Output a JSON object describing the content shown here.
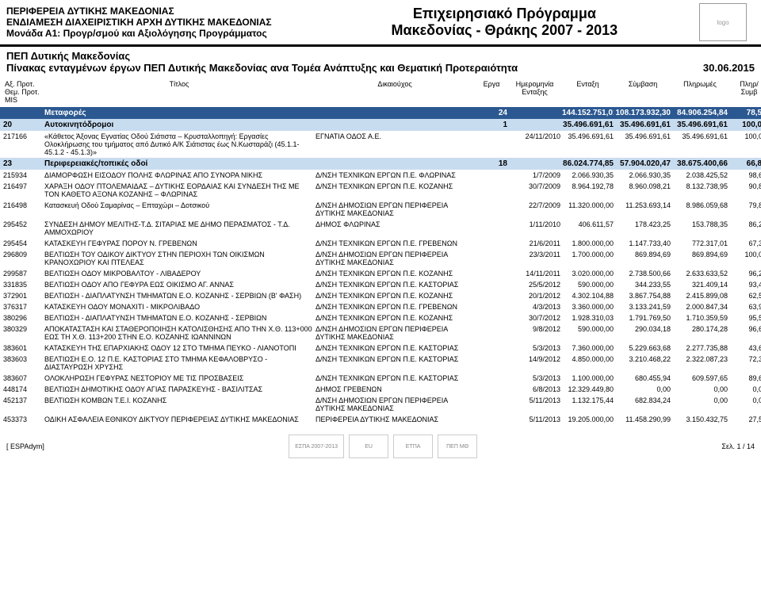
{
  "header": {
    "org_line1": "ΠΕΡΙΦΕΡΕΙΑ ΔΥΤΙΚΗΣ ΜΑΚΕΔΟΝΙΑΣ",
    "org_line2": "ΕΝΔΙΑΜΕΣΗ ΔΙΑΧΕΙΡΙΣΤΙΚΗ ΑΡΧΗ ΔΥΤΙΚΗΣ ΜΑΚΕΔΟΝΙΑΣ",
    "org_line3": "Μονάδα Α1: Προγρ/σμού και Αξιολόγησης Προγράμματος",
    "program_line1": "Επιχειρησιακό Πρόγραμμα",
    "program_line2": "Μακεδονίας - Θράκης 2007 - 2013"
  },
  "subheader": {
    "title1": "ΠΕΠ Δυτικής Μακεδονίας",
    "title2": "Πίνακας ενταγμένων έργων ΠΕΠ Δυτικής Μακεδονίας ανα Τομέα Ανάπτυξης και Θεματική Προτεραιότητα",
    "date": "30.06.2015"
  },
  "columns": {
    "c1": "Αξ. Προτ. Θεμ. Προτ. MIS",
    "c2": "Τίτλος",
    "c3": "Δικαιούχος",
    "c4": "Εργα",
    "c5": "Ημερομηνία Ενταξης",
    "c6": "Ενταξη",
    "c7": "Σύμβαση",
    "c8": "Πληρωμές",
    "c9": "Πληρ/ Συμβ"
  },
  "band1": {
    "label": "Μεταφορές",
    "erga": "24",
    "entaxi": "144.152.751,01",
    "symvasi": "108.173.932,30",
    "pliromes": "84.906.254,84",
    "pct": "78,5%"
  },
  "subband1": {
    "code": "20",
    "label": "Αυτοκινητόδρομοι",
    "erga": "1",
    "entaxi": "35.496.691,61",
    "symvasi": "35.496.691,61",
    "pliromes": "35.496.691,61",
    "pct": "100,0%"
  },
  "row_sub1": {
    "mis": "217166",
    "title": "«Κάθετος Άξονας Εγνατίας Οδού Σιάτιστα – Κρυσταλλοπηγή: Εργασίες Ολοκλήρωσης του τμήματος από Δυτικό Α/Κ Σιάτιστας έως Ν.Κωσταράζι (45.1.1- 45.1.2 - 45.1.3)»",
    "dik": "ΕΓΝΑΤΙΑ ΟΔΟΣ Α.Ε.",
    "date": "24/11/2010",
    "entaxi": "35.496.691,61",
    "symvasi": "35.496.691,61",
    "pliromes": "35.496.691,61",
    "pct": "100,0%"
  },
  "subband2": {
    "code": "23",
    "label": "Περιφερειακές/τοπικές οδοί",
    "erga": "18",
    "entaxi": "86.024.774,85",
    "symvasi": "57.904.020,47",
    "pliromes": "38.675.400,66",
    "pct": "66,8%"
  },
  "rows": [
    {
      "mis": "215934",
      "title": "ΔΙΑΜΟΡΦΩΣΗ ΕΙΣΟΔΟΥ ΠΟΛΗΣ ΦΛΩΡΙΝΑΣ ΑΠΟ ΣΥΝΟΡΑ ΝΙΚΗΣ",
      "dik": "Δ/ΝΣΗ ΤΕΧΝΙΚΩΝ ΕΡΓΩΝ Π.Ε. ΦΛΩΡΙΝΑΣ",
      "date": "1/7/2009",
      "entaxi": "2.066.930,35",
      "symvasi": "2.066.930,35",
      "pliromes": "2.038.425,52",
      "pct": "98,6%"
    },
    {
      "mis": "216497",
      "title": "ΧΑΡΑΞΗ ΟΔΟΥ ΠΤΟΛΕΜΑΙΔΑΣ – ΔΥΤΙΚΗΣ ΕΟΡΔΑΙΑΣ ΚΑΙ ΣΥΝΔΕΣΗ ΤΗΣ ΜΕ ΤΟΝ ΚΑΘΕΤΟ ΑΞΟΝΑ ΚΟΖΑΝΗΣ – ΦΛΩΡΙΝΑΣ",
      "dik": "Δ/ΝΣΗ ΤΕΧΝΙΚΩΝ ΕΡΓΩΝ Π.Ε. ΚΟΖΑΝΗΣ",
      "date": "30/7/2009",
      "entaxi": "8.964.192,78",
      "symvasi": "8.960.098,21",
      "pliromes": "8.132.738,95",
      "pct": "90,8%"
    },
    {
      "mis": "216498",
      "title": "Κατασκευή Οδού Σαμαρίνας – Επταχώρι – Δοτσικού",
      "dik": "Δ/ΝΣΗ ΔΗΜΟΣΙΩΝ ΕΡΓΩΝ ΠΕΡΙΦΕΡΕΙΑ ΔΥΤΙΚΗΣ ΜΑΚΕΔΟΝΙΑΣ",
      "date": "22/7/2009",
      "entaxi": "11.320.000,00",
      "symvasi": "11.253.693,14",
      "pliromes": "8.986.059,68",
      "pct": "79,8%"
    },
    {
      "mis": "295452",
      "title": "ΣΥΝΔΕΣΗ ΔΗΜΟΥ ΜΕΛΙΤΗΣ-Τ.Δ. ΣΙΤΑΡΙΑΣ ΜΕ ΔΗΜΟ ΠΕΡΑΣΜΑΤΟΣ - Τ.Δ. ΑΜΜΟΧΩΡΙΟΥ",
      "dik": "ΔΗΜΟΣ ΦΛΩΡΙΝΑΣ",
      "date": "1/11/2010",
      "entaxi": "406.611,57",
      "symvasi": "178.423,25",
      "pliromes": "153.788,35",
      "pct": "86,2%"
    },
    {
      "mis": "295454",
      "title": "ΚΑΤΑΣΚΕΥΗ ΓΕΦΥΡΑΣ ΠΟΡΟΥ Ν. ΓΡΕΒΕΝΩΝ",
      "dik": "Δ/ΝΣΗ ΤΕΧΝΙΚΩΝ ΕΡΓΩΝ Π.Ε. ΓΡΕΒΕΝΩΝ",
      "date": "21/6/2011",
      "entaxi": "1.800.000,00",
      "symvasi": "1.147.733,40",
      "pliromes": "772.317,01",
      "pct": "67,3%"
    },
    {
      "mis": "296809",
      "title": "ΒΕΛΤΙΩΣΗ ΤΟΥ ΟΔΙΚΟΥ ΔΙΚΤΥΟΥ ΣΤΗΝ ΠΕΡΙΟΧΗ ΤΩΝ ΟΙΚΙΣΜΩΝ ΚΡΑΝΟΧΩΡΙΟΥ ΚΑΙ ΠΤΕΛΕΑΣ",
      "dik": "Δ/ΝΣΗ ΔΗΜΟΣΙΩΝ ΕΡΓΩΝ ΠΕΡΙΦΕΡΕΙΑ ΔΥΤΙΚΗΣ ΜΑΚΕΔΟΝΙΑΣ",
      "date": "23/3/2011",
      "entaxi": "1.700.000,00",
      "symvasi": "869.894,69",
      "pliromes": "869.894,69",
      "pct": "100,0%"
    },
    {
      "mis": "299587",
      "title": "ΒΕΛΤΙΩΣΗ ΟΔΟΥ ΜΙΚΡΟΒΑΛΤΟΥ - ΛΙΒΑΔΕΡΟΥ",
      "dik": "Δ/ΝΣΗ ΤΕΧΝΙΚΩΝ ΕΡΓΩΝ Π.Ε. ΚΟΖΑΝΗΣ",
      "date": "14/11/2011",
      "entaxi": "3.020.000,00",
      "symvasi": "2.738.500,66",
      "pliromes": "2.633.633,52",
      "pct": "96,2%"
    },
    {
      "mis": "331835",
      "title": "ΒΕΛΤΙΩΣΗ ΟΔΟΥ ΑΠΟ ΓΕΦΥΡΑ ΕΩΣ ΟΙΚΙΣΜΟ ΑΓ. ΑΝΝΑΣ",
      "dik": "Δ/ΝΣΗ ΤΕΧΝΙΚΩΝ ΕΡΓΩΝ Π.Ε. ΚΑΣΤΟΡΙΑΣ",
      "date": "25/5/2012",
      "entaxi": "590.000,00",
      "symvasi": "344.233,55",
      "pliromes": "321.409,14",
      "pct": "93,4%"
    },
    {
      "mis": "372901",
      "title": "ΒΕΛΤΙΩΣΗ - ΔΙΑΠΛΑΤΥΝΣΗ ΤΜΗΜΑΤΩΝ Ε.Ο. ΚΟΖΑΝΗΣ - ΣΕΡΒΙΩΝ (Β' ΦΑΣΗ)",
      "dik": "Δ/ΝΣΗ ΤΕΧΝΙΚΩΝ ΕΡΓΩΝ Π.Ε. ΚΟΖΑΝΗΣ",
      "date": "20/1/2012",
      "entaxi": "4.302.104,88",
      "symvasi": "3.867.754,88",
      "pliromes": "2.415.899,08",
      "pct": "62,5%"
    },
    {
      "mis": "376317",
      "title": "ΚΑΤΑΣΚΕΥΗ ΟΔΟΥ ΜΟΝΑΧΙΤΙ - ΜΙΚΡΟΛΙΒΑΔΟ",
      "dik": "Δ/ΝΣΗ ΤΕΧΝΙΚΩΝ ΕΡΓΩΝ Π.Ε. ΓΡΕΒΕΝΩΝ",
      "date": "4/3/2013",
      "entaxi": "3.360.000,00",
      "symvasi": "3.133.241,59",
      "pliromes": "2.000.847,34",
      "pct": "63,9%"
    },
    {
      "mis": "380296",
      "title": "ΒΕΛΤΙΩΣΗ - ΔΙΑΠΛΑΤΥΝΣΗ ΤΜΗΜΑΤΩΝ Ε.Ο. ΚΟΖΑΝΗΣ - ΣΕΡΒΙΩΝ",
      "dik": "Δ/ΝΣΗ ΤΕΧΝΙΚΩΝ ΕΡΓΩΝ Π.Ε. ΚΟΖΑΝΗΣ",
      "date": "30/7/2012",
      "entaxi": "1.928.310,03",
      "symvasi": "1.791.769,50",
      "pliromes": "1.710.359,59",
      "pct": "95,5%"
    },
    {
      "mis": "380329",
      "title": "ΑΠΟΚΑΤΑΣΤΑΣΗ ΚΑΙ ΣΤΑΘΕΡΟΠΟΙΗΣΗ ΚΑΤΟΛΙΣΘΗΣΗΣ ΑΠΟ ΤΗΝ Χ.Θ. 113+000 ΕΩΣ ΤΗ Χ.Θ. 113+200 ΣΤΗΝ Ε.Ο. ΚΟΖΑΝΗΣ ΙΩΑΝΝΙΝΩΝ",
      "dik": "Δ/ΝΣΗ ΔΗΜΟΣΙΩΝ ΕΡΓΩΝ ΠΕΡΙΦΕΡΕΙΑ ΔΥΤΙΚΗΣ ΜΑΚΕΔΟΝΙΑΣ",
      "date": "9/8/2012",
      "entaxi": "590.000,00",
      "symvasi": "290.034,18",
      "pliromes": "280.174,28",
      "pct": "96,6%"
    },
    {
      "mis": "383601",
      "title": "ΚΑΤΑΣΚΕΥΗ ΤΗΣ ΕΠΑΡΧΙΑΚΗΣ ΟΔΟΥ 12 ΣΤΟ ΤΜΗΜΑ ΠΕΥΚΟ - ΛΙΑΝΟΤΟΠΙ",
      "dik": "Δ/ΝΣΗ ΤΕΧΝΙΚΩΝ ΕΡΓΩΝ Π.Ε. ΚΑΣΤΟΡΙΑΣ",
      "date": "5/3/2013",
      "entaxi": "7.360.000,00",
      "symvasi": "5.229.663,68",
      "pliromes": "2.277.735,88",
      "pct": "43,6%"
    },
    {
      "mis": "383603",
      "title": "ΒΕΛΤΙΩΣΗ Ε.Ο. 12 Π.Ε. ΚΑΣΤΟΡΙΑΣ ΣΤΟ ΤΜΗΜΑ ΚΕΦΑΛΟΒΡΥΣΟ - ΔΙΑΣΤΑΥΡΩΣΗ ΧΡΥΣΗΣ",
      "dik": "Δ/ΝΣΗ ΤΕΧΝΙΚΩΝ ΕΡΓΩΝ Π.Ε. ΚΑΣΤΟΡΙΑΣ",
      "date": "14/9/2012",
      "entaxi": "4.850.000,00",
      "symvasi": "3.210.468,22",
      "pliromes": "2.322.087,23",
      "pct": "72,3%"
    },
    {
      "mis": "383607",
      "title": "ΟΛΟΚΛΗΡΩΣΗ ΓΕΦΥΡΑΣ ΝΕΣΤΟΡΙΟΥ ΜΕ ΤΙΣ ΠΡΟΣΒΑΣΕΙΣ",
      "dik": "Δ/ΝΣΗ ΤΕΧΝΙΚΩΝ ΕΡΓΩΝ Π.Ε. ΚΑΣΤΟΡΙΑΣ",
      "date": "5/3/2013",
      "entaxi": "1.100.000,00",
      "symvasi": "680.455,94",
      "pliromes": "609.597,65",
      "pct": "89,6%"
    },
    {
      "mis": "448174",
      "title": "ΒΕΛΤΙΩΣΗ ΔΗΜΟΤΙΚΗΣ ΟΔΟΥ ΑΓΙΑΣ ΠΑΡΑΣΚΕΥΗΣ - ΒΑΣΙΛΙΤΣΑΣ",
      "dik": "ΔΗΜΟΣ ΓΡΕΒΕΝΩΝ",
      "date": "6/8/2013",
      "entaxi": "12.329.449,80",
      "symvasi": "0,00",
      "pliromes": "0,00",
      "pct": "0,0%"
    },
    {
      "mis": "452137",
      "title": "ΒΕΛΤΙΩΣΗ ΚΟΜΒΩΝ Τ.Ε.Ι. ΚΟΖΑΝΗΣ",
      "dik": "Δ/ΝΣΗ ΔΗΜΟΣΙΩΝ ΕΡΓΩΝ ΠΕΡΙΦΕΡΕΙΑ ΔΥΤΙΚΗΣ ΜΑΚΕΔΟΝΙΑΣ",
      "date": "5/11/2013",
      "entaxi": "1.132.175,44",
      "symvasi": "682.834,24",
      "pliromes": "0,00",
      "pct": "0,0%"
    },
    {
      "mis": "453373",
      "title": "ΟΔΙΚΗ ΑΣΦΑΛΕΙΑ ΕΘΝΙΚΟΥ ΔΙΚΤΥΟΥ ΠΕΡΙΦΕΡΕΙΑΣ ΔΥΤΙΚΗΣ ΜΑΚΕΔΟΝΙΑΣ",
      "dik": "ΠΕΡΙΦΕΡΕΙΑ ΔΥΤΙΚΗΣ ΜΑΚΕΔΟΝΙΑΣ",
      "date": "5/11/2013",
      "entaxi": "19.205.000,00",
      "symvasi": "11.458.290,99",
      "pliromes": "3.150.432,75",
      "pct": "27,5%"
    }
  ],
  "footer": {
    "left": "[὆ ESPAdym]",
    "page": "Σελ. 1 / 14",
    "logo1": "ΕΣΠΑ 2007-2013",
    "logo2": "EU",
    "logo3": "ΕΤΠΑ",
    "logo4": "ΠΕΠ ΜΘ"
  }
}
